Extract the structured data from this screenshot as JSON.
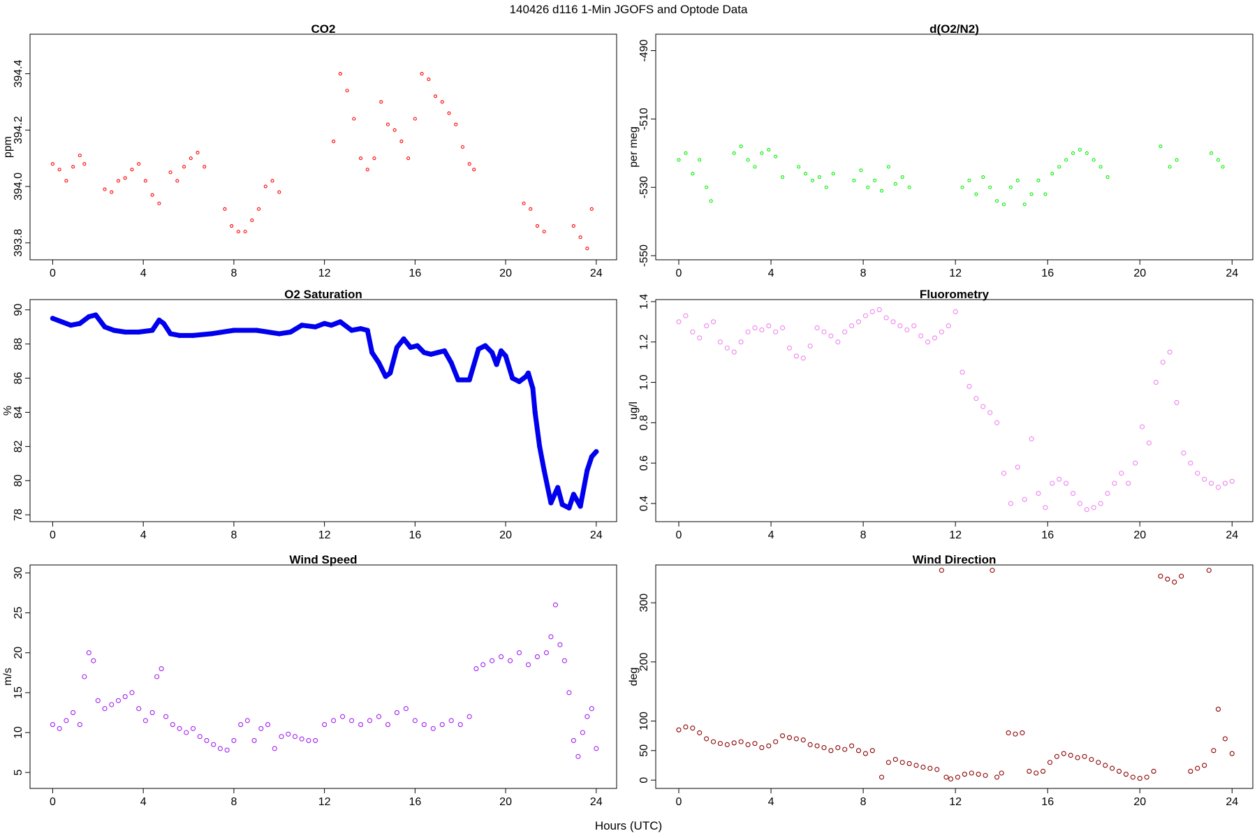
{
  "figure": {
    "suptitle": "140426   d116   1-Min  JGOFS and Optode Data",
    "xlabel": "Hours (UTC)"
  },
  "chart_data": [
    {
      "type": "scatter",
      "title": "CO2",
      "ylabel": "ppm",
      "color": "#ff0000",
      "marker_r": 2,
      "xlim": [
        -1,
        24.9
      ],
      "ylim": [
        393.74,
        394.54
      ],
      "xticks": [
        0,
        4,
        8,
        12,
        16,
        20,
        24
      ],
      "yticks": [
        393.8,
        394.0,
        394.2,
        394.4
      ],
      "ytick_labels": [
        "393.8",
        "394.0",
        "394.2",
        "394.4"
      ],
      "series": [
        {
          "x": [
            0.0,
            0.3,
            0.6,
            0.9,
            1.2,
            1.4,
            2.3,
            2.6,
            2.9,
            3.2,
            3.5,
            3.8,
            4.1,
            4.4,
            4.7,
            5.2,
            5.5,
            5.8,
            6.1,
            6.4,
            6.7,
            7.6,
            7.9,
            8.2,
            8.5,
            8.8,
            9.1,
            9.4,
            9.7,
            10.0,
            12.4,
            12.7,
            13.0,
            13.3,
            13.6,
            13.9,
            14.2,
            14.5,
            14.8,
            15.1,
            15.4,
            15.7,
            16.0,
            16.3,
            16.6,
            16.9,
            17.2,
            17.5,
            17.8,
            18.1,
            18.4,
            18.6,
            20.8,
            21.1,
            21.4,
            21.7,
            23.0,
            23.3,
            23.6,
            23.8
          ],
          "y": [
            394.08,
            394.06,
            394.02,
            394.07,
            394.11,
            394.08,
            393.99,
            393.98,
            394.02,
            394.03,
            394.06,
            394.08,
            394.02,
            393.97,
            393.94,
            394.05,
            394.02,
            394.07,
            394.1,
            394.12,
            394.07,
            393.92,
            393.86,
            393.84,
            393.84,
            393.88,
            393.92,
            394.0,
            394.02,
            393.98,
            394.16,
            394.4,
            394.34,
            394.24,
            394.1,
            394.06,
            394.1,
            394.3,
            394.22,
            394.2,
            394.16,
            394.1,
            394.24,
            394.4,
            394.38,
            394.32,
            394.3,
            394.26,
            394.22,
            394.14,
            394.08,
            394.06,
            393.94,
            393.92,
            393.86,
            393.84,
            393.86,
            393.82,
            393.78,
            393.92
          ]
        }
      ]
    },
    {
      "type": "scatter",
      "title": "d(O2/N2)",
      "ylabel": "per meg",
      "color": "#00ee00",
      "marker_r": 2,
      "xlim": [
        -1,
        24.9
      ],
      "ylim": [
        -551.2,
        -485.2
      ],
      "xticks": [
        0,
        4,
        8,
        12,
        16,
        20,
        24
      ],
      "yticks": [
        -550,
        -530,
        -510,
        -490
      ],
      "ytick_labels": [
        "-550",
        "-530",
        "-510",
        "-490"
      ],
      "series": [
        {
          "x": [
            0.0,
            0.3,
            0.6,
            0.9,
            1.2,
            1.4,
            2.4,
            2.7,
            3.0,
            3.3,
            3.6,
            3.9,
            4.2,
            4.5,
            5.2,
            5.5,
            5.8,
            6.1,
            6.4,
            6.7,
            7.6,
            7.9,
            8.2,
            8.5,
            8.8,
            9.1,
            9.4,
            9.7,
            10.0,
            12.3,
            12.6,
            12.9,
            13.2,
            13.5,
            13.8,
            14.1,
            14.4,
            14.7,
            15.0,
            15.3,
            15.6,
            15.9,
            16.2,
            16.5,
            16.8,
            17.1,
            17.4,
            17.7,
            18.0,
            18.3,
            18.6,
            20.9,
            21.3,
            21.6,
            23.1,
            23.4,
            23.6
          ],
          "y": [
            -522,
            -520,
            -526,
            -522,
            -530,
            -534,
            -520,
            -518,
            -522,
            -524,
            -520,
            -519,
            -521,
            -527,
            -524,
            -526,
            -528,
            -527,
            -530,
            -526,
            -528,
            -525,
            -530,
            -528,
            -531,
            -524,
            -529,
            -527,
            -530,
            -530,
            -528,
            -532,
            -527,
            -530,
            -534,
            -535,
            -530,
            -528,
            -535,
            -532,
            -528,
            -532,
            -526,
            -524,
            -522,
            -520,
            -519,
            -520,
            -522,
            -524,
            -527,
            -518,
            -524,
            -522,
            -520,
            -522,
            -524
          ]
        }
      ]
    },
    {
      "type": "line",
      "title": "O2 Saturation",
      "ylabel": "%",
      "color": "#0000ee",
      "marker_r": 3,
      "line_w": 7,
      "xlim": [
        -1,
        24.9
      ],
      "ylim": [
        77.6,
        90.6
      ],
      "xticks": [
        0,
        4,
        8,
        12,
        16,
        20,
        24
      ],
      "yticks": [
        78,
        80,
        82,
        84,
        86,
        88,
        90
      ],
      "ytick_labels": [
        "78",
        "80",
        "82",
        "84",
        "86",
        "88",
        "90"
      ],
      "series": [
        {
          "x": [
            0.0,
            0.4,
            0.8,
            1.2,
            1.6,
            1.9,
            2.3,
            2.7,
            3.2,
            3.8,
            4.4,
            4.7,
            4.9,
            5.2,
            5.6,
            6.2,
            7.0,
            8.0,
            9.0,
            10.0,
            10.5,
            11.0,
            11.6,
            12.0,
            12.3,
            12.7,
            13.2,
            13.6,
            13.9,
            14.1,
            14.4,
            14.7,
            14.9,
            15.2,
            15.5,
            15.8,
            16.1,
            16.4,
            16.7,
            17.0,
            17.3,
            17.6,
            17.9,
            18.4,
            18.8,
            19.1,
            19.4,
            19.6,
            19.8,
            20.0,
            20.3,
            20.6,
            20.9,
            21.0,
            21.2,
            21.3,
            21.5,
            21.7,
            22.0,
            22.3,
            22.5,
            22.8,
            23.0,
            23.3,
            23.6,
            23.8,
            24.0
          ],
          "y": [
            89.5,
            89.3,
            89.1,
            89.2,
            89.6,
            89.7,
            89.0,
            88.8,
            88.7,
            88.7,
            88.8,
            89.4,
            89.2,
            88.6,
            88.5,
            88.5,
            88.6,
            88.8,
            88.8,
            88.6,
            88.7,
            89.1,
            89.0,
            89.2,
            89.1,
            89.3,
            88.8,
            88.9,
            88.8,
            87.5,
            86.9,
            86.1,
            86.3,
            87.8,
            88.3,
            87.8,
            87.9,
            87.5,
            87.4,
            87.5,
            87.6,
            86.9,
            85.9,
            85.9,
            87.7,
            87.9,
            87.5,
            86.8,
            87.6,
            87.3,
            86.0,
            85.8,
            86.1,
            86.3,
            85.4,
            84.0,
            82.0,
            80.6,
            78.7,
            79.6,
            78.6,
            78.4,
            79.2,
            78.5,
            80.6,
            81.4,
            81.7
          ]
        }
      ]
    },
    {
      "type": "scatter",
      "title": "Fluorometry",
      "ylabel": "ug/l",
      "color": "#ee82ee",
      "marker_r": 3,
      "xlim": [
        -1,
        24.9
      ],
      "ylim": [
        0.31,
        1.41
      ],
      "xticks": [
        0,
        4,
        8,
        12,
        16,
        20,
        24
      ],
      "yticks": [
        0.4,
        0.6,
        0.8,
        1.0,
        1.2,
        1.4
      ],
      "ytick_labels": [
        "0.4",
        "0.6",
        "0.8",
        "1.0",
        "1.2",
        "1.4"
      ],
      "series": [
        {
          "x": [
            0.0,
            0.3,
            0.6,
            0.9,
            1.2,
            1.5,
            1.8,
            2.1,
            2.4,
            2.7,
            3.0,
            3.3,
            3.6,
            3.9,
            4.2,
            4.5,
            4.8,
            5.1,
            5.4,
            5.7,
            6.0,
            6.3,
            6.6,
            6.9,
            7.2,
            7.5,
            7.8,
            8.1,
            8.4,
            8.7,
            9.0,
            9.3,
            9.6,
            9.9,
            10.2,
            10.5,
            10.8,
            11.1,
            11.4,
            11.7,
            12.0,
            12.3,
            12.6,
            12.9,
            13.2,
            13.5,
            13.8,
            14.1,
            14.4,
            14.7,
            15.0,
            15.3,
            15.6,
            15.9,
            16.2,
            16.5,
            16.8,
            17.1,
            17.4,
            17.7,
            18.0,
            18.3,
            18.6,
            18.9,
            19.2,
            19.5,
            19.8,
            20.1,
            20.4,
            20.7,
            21.0,
            21.3,
            21.6,
            21.9,
            22.2,
            22.5,
            22.8,
            23.1,
            23.4,
            23.7,
            24.0
          ],
          "y": [
            1.3,
            1.33,
            1.25,
            1.22,
            1.28,
            1.3,
            1.2,
            1.17,
            1.15,
            1.2,
            1.25,
            1.27,
            1.26,
            1.28,
            1.25,
            1.27,
            1.17,
            1.13,
            1.12,
            1.18,
            1.27,
            1.25,
            1.23,
            1.2,
            1.25,
            1.28,
            1.3,
            1.33,
            1.35,
            1.36,
            1.32,
            1.3,
            1.28,
            1.26,
            1.28,
            1.23,
            1.2,
            1.22,
            1.25,
            1.28,
            1.35,
            1.05,
            0.98,
            0.92,
            0.88,
            0.85,
            0.8,
            0.55,
            0.4,
            0.58,
            0.42,
            0.72,
            0.45,
            0.38,
            0.5,
            0.52,
            0.5,
            0.45,
            0.4,
            0.37,
            0.38,
            0.4,
            0.45,
            0.5,
            0.55,
            0.5,
            0.6,
            0.78,
            0.7,
            1.0,
            1.1,
            1.15,
            0.9,
            0.65,
            0.6,
            0.55,
            0.52,
            0.5,
            0.48,
            0.5,
            0.51
          ]
        }
      ]
    },
    {
      "type": "scatter",
      "title": "Wind Speed",
      "ylabel": "m/s",
      "color": "#a020f0",
      "marker_r": 3,
      "xlim": [
        -1,
        24.9
      ],
      "ylim": [
        3.0,
        31.0
      ],
      "xticks": [
        0,
        4,
        8,
        12,
        16,
        20,
        24
      ],
      "yticks": [
        5,
        10,
        15,
        20,
        25,
        30
      ],
      "ytick_labels": [
        "5",
        "10",
        "15",
        "20",
        "25",
        "30"
      ],
      "series": [
        {
          "x": [
            0.0,
            0.3,
            0.6,
            0.9,
            1.2,
            1.4,
            1.6,
            1.8,
            2.0,
            2.3,
            2.6,
            2.9,
            3.2,
            3.5,
            3.8,
            4.1,
            4.4,
            4.6,
            4.8,
            5.0,
            5.3,
            5.6,
            5.9,
            6.2,
            6.5,
            6.8,
            7.1,
            7.4,
            7.7,
            8.0,
            8.3,
            8.6,
            8.9,
            9.2,
            9.5,
            9.8,
            10.1,
            10.4,
            10.7,
            11.0,
            11.3,
            11.6,
            12.0,
            12.4,
            12.8,
            13.2,
            13.6,
            14.0,
            14.4,
            14.8,
            15.2,
            15.6,
            16.0,
            16.4,
            16.8,
            17.2,
            17.6,
            18.0,
            18.4,
            18.7,
            19.0,
            19.4,
            19.8,
            20.2,
            20.6,
            21.0,
            21.4,
            21.8,
            22.0,
            22.2,
            22.4,
            22.6,
            22.8,
            23.0,
            23.2,
            23.4,
            23.6,
            23.8,
            24.0
          ],
          "y": [
            11.0,
            10.5,
            11.5,
            12.5,
            11.0,
            17.0,
            20.0,
            19.0,
            14.0,
            13.0,
            13.5,
            14.0,
            14.5,
            15.0,
            13.0,
            11.5,
            12.5,
            17.0,
            18.0,
            12.0,
            11.0,
            10.5,
            10.0,
            10.5,
            9.5,
            9.0,
            8.5,
            8.0,
            7.8,
            9.0,
            11.0,
            11.5,
            9.0,
            10.5,
            11.0,
            8.0,
            9.5,
            9.8,
            9.5,
            9.2,
            9.0,
            9.0,
            11.0,
            11.5,
            12.0,
            11.5,
            11.0,
            11.5,
            12.0,
            11.0,
            12.5,
            13.0,
            11.5,
            11.0,
            10.5,
            11.0,
            11.5,
            11.0,
            12.0,
            18.0,
            18.5,
            19.0,
            19.5,
            19.0,
            20.0,
            18.5,
            19.5,
            20.0,
            22.0,
            26.0,
            21.0,
            19.0,
            15.0,
            9.0,
            7.0,
            10.0,
            12.0,
            13.0,
            8.0
          ]
        }
      ]
    },
    {
      "type": "scatter",
      "title": "Wind Direction",
      "ylabel": "deg",
      "color": "#8b0000",
      "marker_r": 3,
      "xlim": [
        -1,
        24.9
      ],
      "ylim": [
        -14,
        364
      ],
      "xticks": [
        0,
        4,
        8,
        12,
        16,
        20,
        24
      ],
      "yticks": [
        0,
        50,
        100,
        200,
        300
      ],
      "ytick_labels": [
        "0",
        "50",
        "100",
        "200",
        "300"
      ],
      "series": [
        {
          "x": [
            0.0,
            0.3,
            0.6,
            0.9,
            1.2,
            1.5,
            1.8,
            2.1,
            2.4,
            2.7,
            3.0,
            3.3,
            3.6,
            3.9,
            4.2,
            4.5,
            4.8,
            5.1,
            5.4,
            5.7,
            6.0,
            6.3,
            6.6,
            6.9,
            7.2,
            7.5,
            7.8,
            8.1,
            8.4,
            8.8,
            9.1,
            9.4,
            9.7,
            10.0,
            10.3,
            10.6,
            10.9,
            11.2,
            11.4,
            11.6,
            11.8,
            12.1,
            12.4,
            12.7,
            13.0,
            13.3,
            13.6,
            13.8,
            14.0,
            14.3,
            14.6,
            14.9,
            15.2,
            15.5,
            15.8,
            16.1,
            16.4,
            16.7,
            17.0,
            17.3,
            17.6,
            17.9,
            18.2,
            18.5,
            18.8,
            19.1,
            19.4,
            19.7,
            20.0,
            20.3,
            20.6,
            20.9,
            21.2,
            21.5,
            21.8,
            22.2,
            22.5,
            22.8,
            23.0,
            23.2,
            23.4,
            23.7,
            24.0
          ],
          "y": [
            85,
            90,
            88,
            80,
            70,
            65,
            62,
            60,
            63,
            65,
            60,
            62,
            55,
            58,
            65,
            75,
            72,
            70,
            68,
            60,
            58,
            55,
            50,
            55,
            52,
            58,
            50,
            45,
            50,
            5,
            30,
            35,
            30,
            28,
            25,
            22,
            20,
            18,
            355,
            5,
            2,
            5,
            10,
            12,
            10,
            8,
            355,
            5,
            12,
            80,
            78,
            80,
            15,
            12,
            15,
            30,
            40,
            45,
            42,
            38,
            40,
            35,
            30,
            25,
            20,
            15,
            10,
            5,
            3,
            5,
            15,
            345,
            340,
            335,
            345,
            15,
            20,
            25,
            355,
            50,
            120,
            70,
            45
          ]
        }
      ]
    }
  ]
}
